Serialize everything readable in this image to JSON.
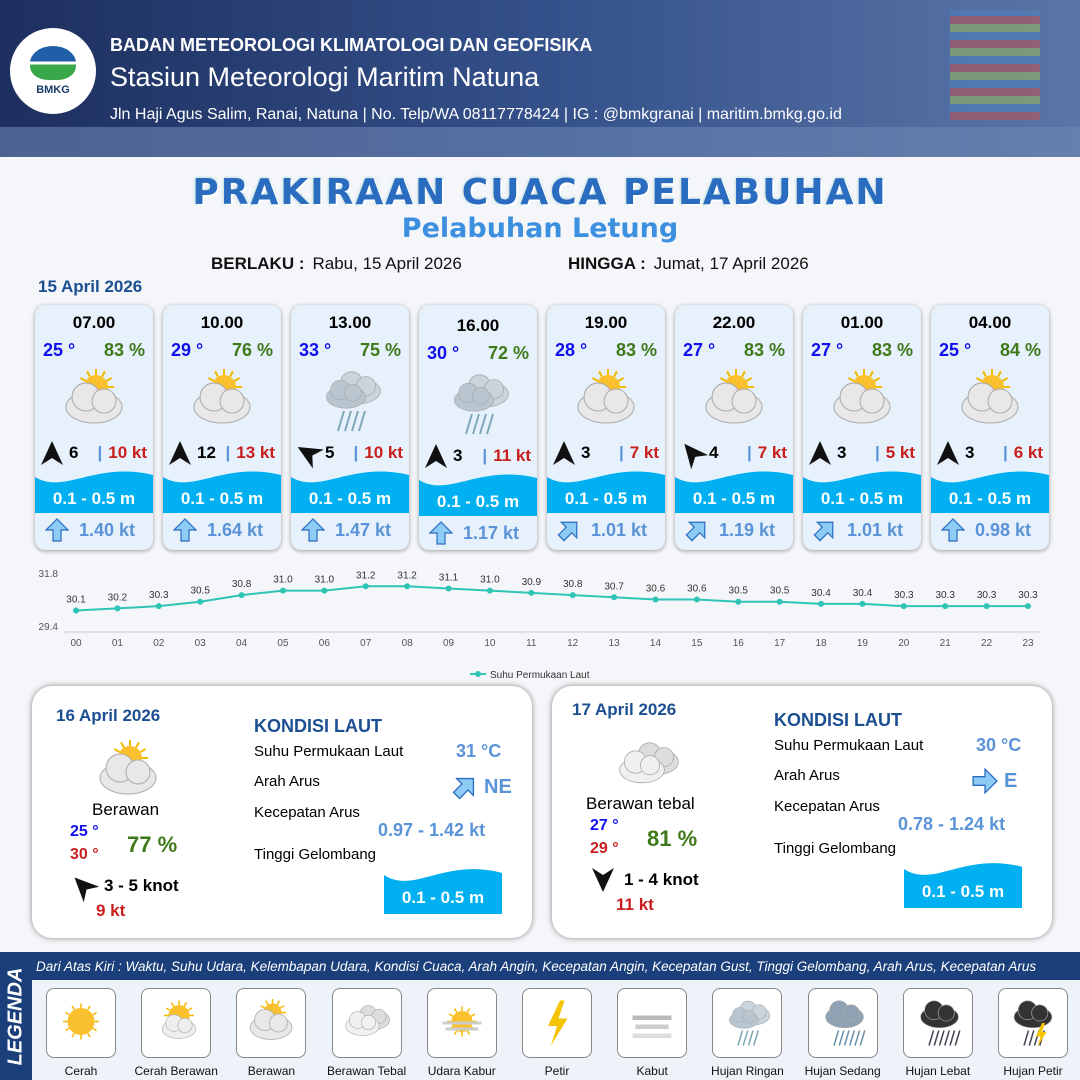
{
  "header": {
    "agency": "BADAN METEOROLOGI KLIMATOLOGI DAN GEOFISIKA",
    "station": "Stasiun Meteorologi Maritim Natuna",
    "contact": "Jln Haji Agus Salim, Ranai, Natuna  | No. Telp/WA 08117778424 | IG : @bmkgranai | maritim.bmkg.go.id",
    "logo_text": "BMKG"
  },
  "title": "PRAKIRAAN CUACA PELABUHAN",
  "subtitle": "Pelabuhan Letung",
  "validity": {
    "from_label": "BERLAKU :",
    "from": "Rabu, 15 April 2026",
    "to_label": "HINGGA :",
    "to": "Jumat, 17 April 2026"
  },
  "day1_date": "15 April 2026",
  "forecasts": [
    {
      "time": "07.00",
      "temp": "25 °",
      "rh": "83 %",
      "icon": "berawan",
      "wind_dir_deg": 0,
      "wind": "6",
      "gust": "10 kt",
      "wave": "0.1 - 0.5 m",
      "cur_dir_deg": 0,
      "cur": "1.40 kt"
    },
    {
      "time": "10.00",
      "temp": "29 °",
      "rh": "76 %",
      "icon": "berawan",
      "wind_dir_deg": 0,
      "wind": "12",
      "gust": "13 kt",
      "wave": "0.1 - 0.5 m",
      "cur_dir_deg": 0,
      "cur": "1.64 kt"
    },
    {
      "time": "13.00",
      "temp": "33 °",
      "rh": "75 %",
      "icon": "hujan-ringan",
      "wind_dir_deg": -60,
      "wind": "5",
      "gust": "10 kt",
      "wave": "0.1 - 0.5 m",
      "cur_dir_deg": 0,
      "cur": "1.47 kt"
    },
    {
      "time": "16.00",
      "temp": "30 °",
      "rh": "72 %",
      "icon": "hujan-ringan",
      "wind_dir_deg": 0,
      "wind": "3",
      "gust": "11 kt",
      "wave": "0.1 - 0.5 m",
      "cur_dir_deg": 0,
      "cur": "1.17 kt"
    },
    {
      "time": "19.00",
      "temp": "28 °",
      "rh": "83 %",
      "icon": "berawan",
      "wind_dir_deg": 0,
      "wind": "3",
      "gust": "7 kt",
      "wave": "0.1 - 0.5 m",
      "cur_dir_deg": 45,
      "cur": "1.01 kt"
    },
    {
      "time": "22.00",
      "temp": "27 °",
      "rh": "83 %",
      "icon": "berawan",
      "wind_dir_deg": -40,
      "wind": "4",
      "gust": "7 kt",
      "wave": "0.1 - 0.5 m",
      "cur_dir_deg": 45,
      "cur": "1.19 kt"
    },
    {
      "time": "01.00",
      "temp": "27 °",
      "rh": "83 %",
      "icon": "berawan",
      "wind_dir_deg": 0,
      "wind": "3",
      "gust": "5 kt",
      "wave": "0.1 - 0.5 m",
      "cur_dir_deg": 45,
      "cur": "1.01 kt"
    },
    {
      "time": "04.00",
      "temp": "25 °",
      "rh": "84 %",
      "icon": "berawan",
      "wind_dir_deg": 0,
      "wind": "3",
      "gust": "6 kt",
      "wave": "0.1 - 0.5 m",
      "cur_dir_deg": 0,
      "cur": "0.98 kt"
    }
  ],
  "chart_data": {
    "type": "line",
    "categories": [
      "00",
      "01",
      "02",
      "03",
      "04",
      "05",
      "06",
      "07",
      "08",
      "09",
      "10",
      "11",
      "12",
      "13",
      "14",
      "15",
      "16",
      "17",
      "18",
      "19",
      "20",
      "21",
      "22",
      "23"
    ],
    "series": [
      {
        "name": "Suhu Permukaan Laut",
        "values": [
          30.1,
          30.2,
          30.3,
          30.5,
          30.8,
          31.0,
          31.0,
          31.2,
          31.2,
          31.1,
          31.0,
          30.9,
          30.8,
          30.7,
          30.6,
          30.6,
          30.5,
          30.5,
          30.4,
          30.4,
          30.3,
          30.3,
          30.3,
          30.3
        ]
      }
    ],
    "ylim": [
      29.4,
      31.8
    ],
    "yticks": [
      "31.8",
      "29.4"
    ],
    "color": "#2ec4b6",
    "legend": "bottom"
  },
  "days": [
    {
      "date": "16 April 2026",
      "icon": "berawan",
      "cond": "Berawan",
      "tmin": "25 °",
      "tmax": "30 °",
      "rh": "77 %",
      "wind_dir_deg": -45,
      "wind": "3  - 5 knot",
      "gust": "9 kt",
      "sea_title": "KONDISI LAUT",
      "sst_label": "Suhu Permukaan Laut",
      "sst": "31 °C",
      "dir_label": "Arah Arus",
      "dir": "NE",
      "cur_dir_deg": 45,
      "spd_label": "Kecepatan Arus",
      "spd": "0.97  - 1.42 kt",
      "wave_label": "Tinggi Gelombang",
      "wave": "0.1 - 0.5 m"
    },
    {
      "date": "17 April 2026",
      "icon": "berawan-tebal",
      "cond": "Berawan tebal",
      "tmin": "27 °",
      "tmax": "29 °",
      "rh": "81 %",
      "wind_dir_deg": 180,
      "wind": "1  - 4 knot",
      "gust": "11 kt",
      "sea_title": "KONDISI LAUT",
      "sst_label": "Suhu Permukaan Laut",
      "sst": "30 °C",
      "dir_label": "Arah Arus",
      "dir": "E",
      "cur_dir_deg": 90,
      "spd_label": "Kecepatan Arus",
      "spd": "0.78  - 1.24 kt",
      "wave_label": "Tinggi Gelombang",
      "wave": "0.1 - 0.5 m"
    }
  ],
  "legend": {
    "title": "LEGENDA",
    "desc": "Dari Atas Kiri : Waktu, Suhu Udara, Kelembapan Udara, Kondisi Cuaca, Arah Angin, Kecepatan Angin, Kecepatan Gust, Tinggi Gelombang, Arah Arus, Kecepatan Arus",
    "items": [
      {
        "name": "Cerah",
        "icon": "cerah"
      },
      {
        "name": "Cerah Berawan",
        "icon": "cerah-berawan"
      },
      {
        "name": "Berawan",
        "icon": "berawan"
      },
      {
        "name": "Berawan Tebal",
        "icon": "berawan-tebal"
      },
      {
        "name": "Udara Kabur",
        "icon": "udara-kabur"
      },
      {
        "name": "Petir",
        "icon": "petir"
      },
      {
        "name": "Kabut",
        "icon": "kabut"
      },
      {
        "name": "Hujan Ringan",
        "icon": "hujan-ringan"
      },
      {
        "name": "Hujan Sedang",
        "icon": "hujan-sedang"
      },
      {
        "name": "Hujan Lebat",
        "icon": "hujan-lebat"
      },
      {
        "name": "Hujan Petir",
        "icon": "hujan-petir"
      }
    ]
  }
}
